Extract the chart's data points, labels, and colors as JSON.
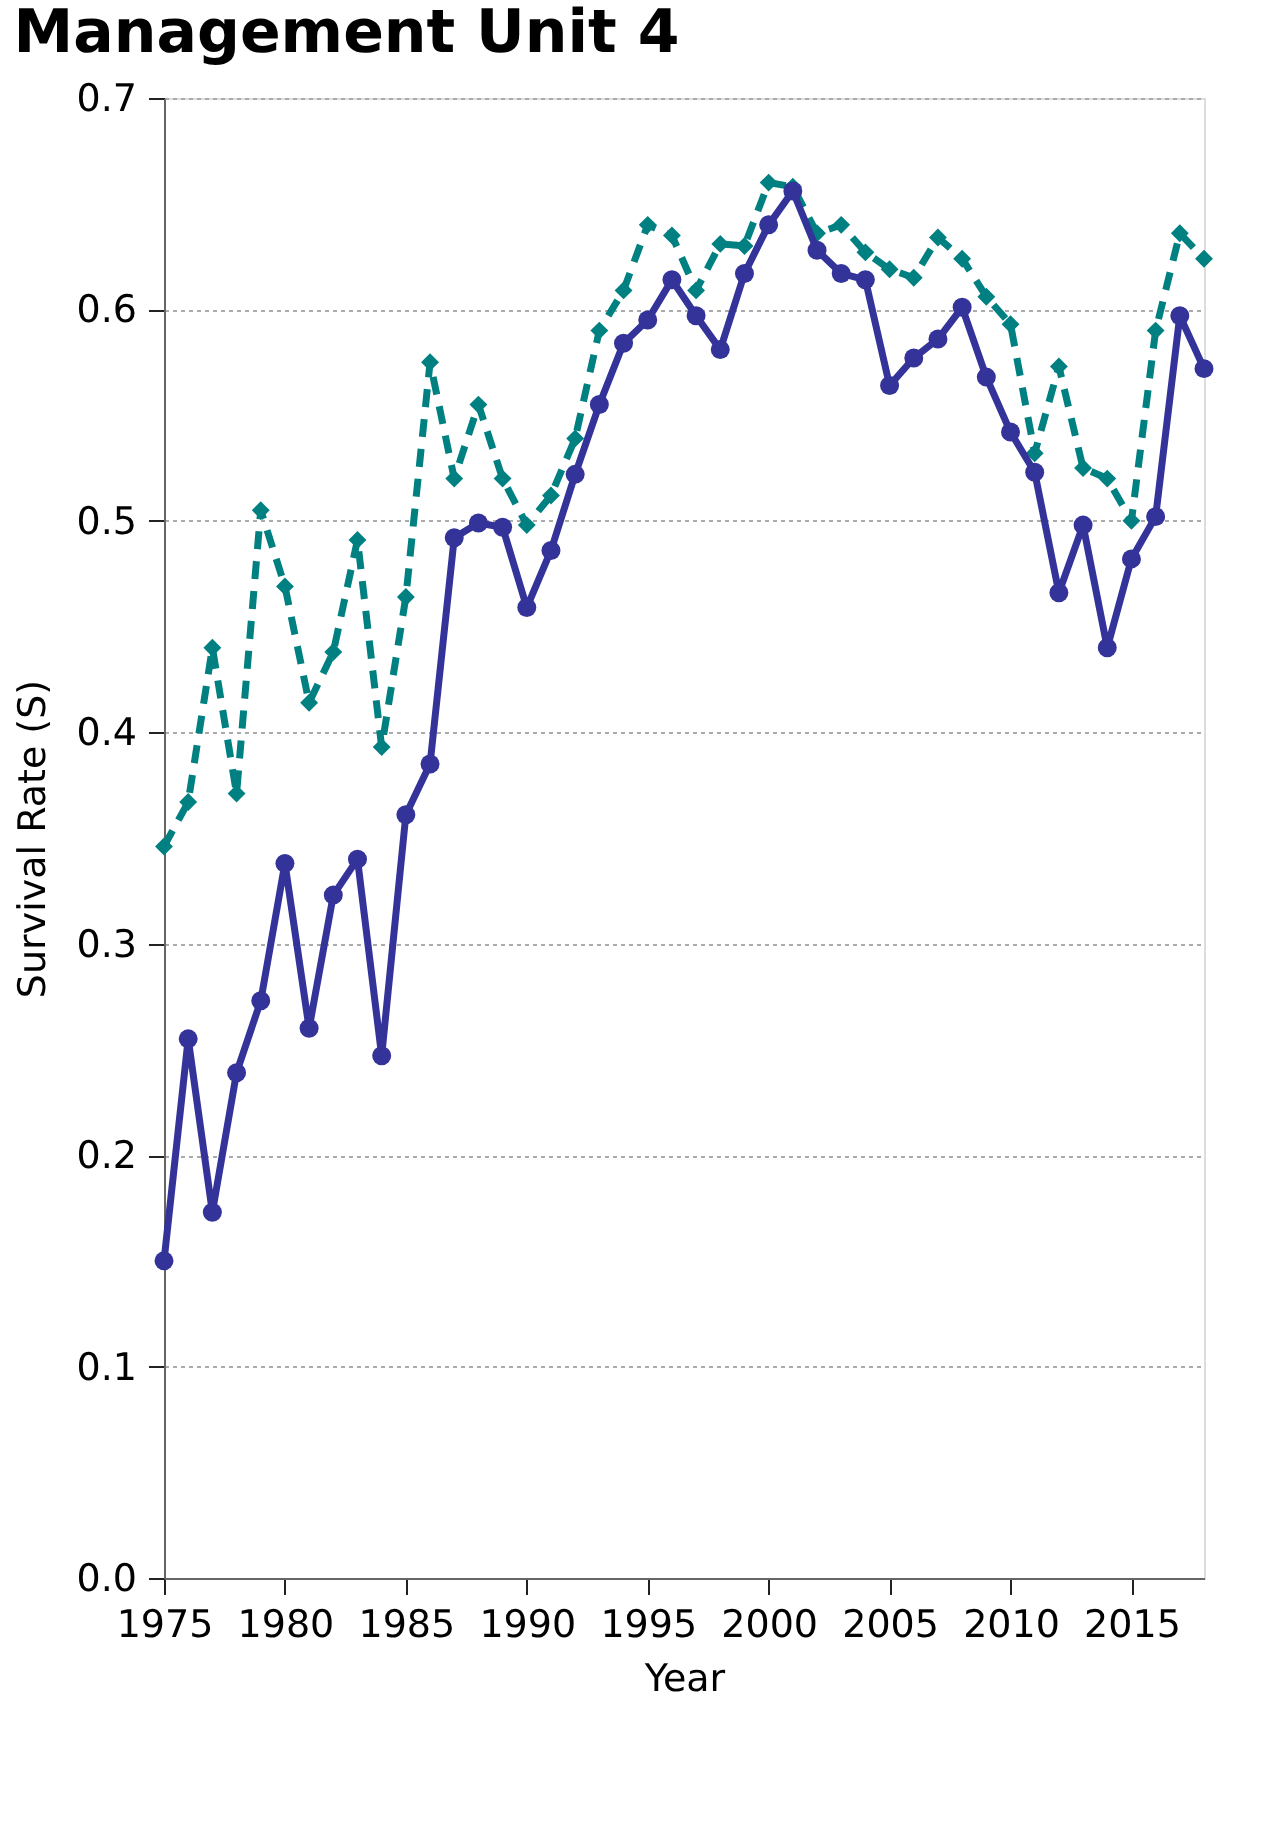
{
  "chart_data": {
    "type": "line",
    "title": "Management Unit 4",
    "xlabel": "Year",
    "ylabel": "Survival Rate (S)",
    "x": [
      1975,
      1976,
      1977,
      1978,
      1979,
      1980,
      1981,
      1982,
      1983,
      1984,
      1985,
      1986,
      1987,
      1988,
      1989,
      1990,
      1991,
      1992,
      1993,
      1994,
      1995,
      1996,
      1997,
      1998,
      1999,
      2000,
      2001,
      2002,
      2003,
      2004,
      2005,
      2006,
      2007,
      2008,
      2009,
      2010,
      2011,
      2012,
      2013,
      2014,
      2015,
      2016,
      2017,
      2018
    ],
    "series": [
      {
        "color": "#333399",
        "marker": "circle",
        "line_style": "solid",
        "values": [
          0.15,
          0.255,
          0.173,
          0.239,
          0.273,
          0.338,
          0.26,
          0.323,
          0.34,
          0.247,
          0.361,
          0.385,
          0.492,
          0.499,
          0.497,
          0.459,
          0.486,
          0.522,
          0.555,
          0.584,
          0.595,
          0.614,
          0.597,
          0.581,
          0.617,
          0.64,
          0.656,
          0.628,
          0.617,
          0.614,
          0.564,
          0.577,
          0.586,
          0.601,
          0.568,
          0.542,
          0.523,
          0.466,
          0.498,
          0.44,
          0.482,
          0.502,
          0.597,
          0.572
        ]
      },
      {
        "color": "#008080",
        "marker": "diamond",
        "line_style": "dashed",
        "values": [
          0.346,
          0.367,
          0.44,
          0.371,
          0.505,
          0.469,
          0.414,
          0.438,
          0.491,
          0.393,
          0.464,
          0.575,
          0.52,
          0.555,
          0.52,
          0.498,
          0.512,
          0.539,
          0.59,
          0.609,
          0.64,
          0.635,
          0.609,
          0.631,
          0.63,
          0.66,
          0.658,
          0.636,
          0.64,
          0.627,
          0.619,
          0.615,
          0.634,
          0.624,
          0.606,
          0.593,
          0.532,
          0.573,
          0.525,
          0.52,
          0.5,
          0.59,
          0.636,
          0.624
        ]
      }
    ],
    "xlim": [
      1975,
      2018
    ],
    "xticks": [
      1975,
      1980,
      1985,
      1990,
      1995,
      2000,
      2005,
      2010,
      2015
    ],
    "ylim": [
      0,
      0.7
    ],
    "yticks": [
      {
        "value": 0,
        "label": "0.0"
      },
      {
        "value": 0.1,
        "label": "0.1"
      },
      {
        "value": 0.2,
        "label": "0.2"
      },
      {
        "value": 0.3,
        "label": "0.3"
      },
      {
        "value": 0.4,
        "label": "0.4"
      },
      {
        "value": 0.5,
        "label": "0.5"
      },
      {
        "value": 0.6,
        "label": "0.6"
      },
      {
        "value": 0.7,
        "label": "0.7"
      }
    ],
    "grid": "y"
  }
}
